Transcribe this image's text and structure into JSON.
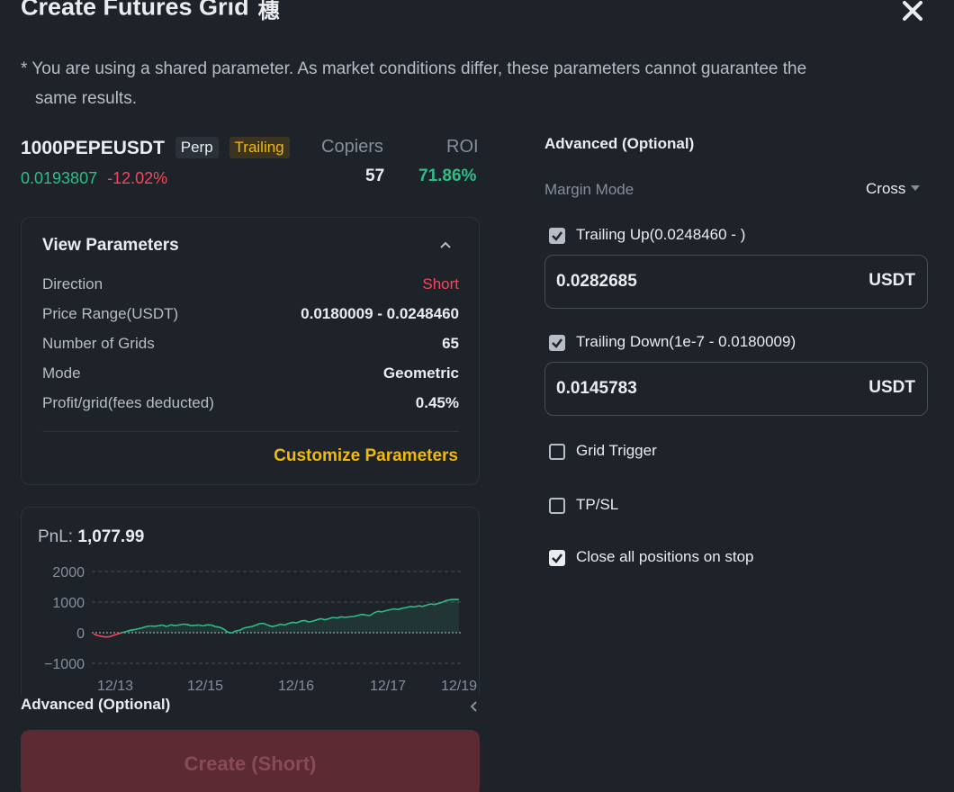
{
  "header": {
    "title": "Create Futures Grid",
    "title_icon": "share-qr-icon",
    "close_icon": "close-icon",
    "note_line1": "* You are using a shared parameter. As market conditions differ, these parameters cannot guarantee the",
    "note_line2": "same results."
  },
  "symbol": {
    "name": "1000PEPEUSDT",
    "tag_perp": "Perp",
    "tag_trailing": "Trailing",
    "price": "0.0193807",
    "change": "-12.02%"
  },
  "stats": {
    "copiers_label": "Copiers",
    "copiers_value": "57",
    "roi_label": "ROI",
    "roi_value": "71.86%"
  },
  "params": {
    "title": "View Parameters",
    "rows": [
      {
        "label": "Direction",
        "value": "Short"
      },
      {
        "label": "Price Range(USDT)",
        "value": "0.0180009 - 0.0248460"
      },
      {
        "label": "Number of Grids",
        "value": "65"
      },
      {
        "label": "Mode",
        "value": "Geometric"
      },
      {
        "label": "Profit/grid(fees deducted)",
        "value": "0.45%"
      }
    ],
    "customize_label": "Customize Parameters"
  },
  "pnl": {
    "label": "PnL:",
    "value": "1,077.99"
  },
  "chart_data": {
    "type": "line",
    "title": "",
    "y_ticks": [
      "2000",
      "1000",
      "0",
      "−1000"
    ],
    "x_ticks": [
      "12/13",
      "12/15",
      "12/16",
      "12/17",
      "12/19"
    ],
    "ylim": [
      -1000,
      2000
    ],
    "grid": true,
    "colors": {
      "positive": "#2ebd85",
      "negative": "#f6465d"
    },
    "series": [
      {
        "values": [
          -40,
          -90,
          -120,
          -140,
          -130,
          -80,
          -40,
          0,
          40,
          80,
          100,
          130,
          160,
          200,
          220,
          210,
          230,
          250,
          200,
          260,
          230,
          250,
          280,
          270,
          230,
          240,
          250,
          220,
          260,
          250,
          200,
          180,
          120,
          20,
          -10,
          60,
          80,
          150,
          180,
          200,
          250,
          300,
          300,
          240,
          200,
          230,
          280,
          250,
          300,
          340,
          320,
          380,
          400,
          350,
          380,
          420,
          460,
          420,
          460,
          500,
          480,
          520,
          500,
          520,
          530,
          560,
          600,
          580,
          560,
          640,
          700,
          680,
          720,
          750,
          780,
          760,
          800,
          820,
          860,
          840,
          880,
          860,
          900,
          940,
          920,
          960,
          1000,
          1060,
          1080,
          1090,
          1078
        ]
      }
    ]
  },
  "advanced_left": {
    "label": "Advanced (Optional)",
    "chevron_icon": "chevron-left-icon"
  },
  "create_button": {
    "label": "Create (Short)"
  },
  "advanced_right": {
    "title": "Advanced (Optional)",
    "margin_mode_label": "Margin Mode",
    "margin_mode_value": "Cross",
    "trailing_up": {
      "label": "Trailing Up(0.0248460 - )",
      "checked": true,
      "value": "0.0282685",
      "unit": "USDT"
    },
    "trailing_down": {
      "label": "Trailing Down(1e-7 - 0.0180009)",
      "checked": true,
      "value": "0.0145783",
      "unit": "USDT"
    },
    "grid_trigger": {
      "label": "Grid Trigger",
      "checked": false
    },
    "tp_sl": {
      "label": "TP/SL",
      "checked": false
    },
    "close_all": {
      "label": "Close all positions on stop",
      "checked": true
    }
  }
}
